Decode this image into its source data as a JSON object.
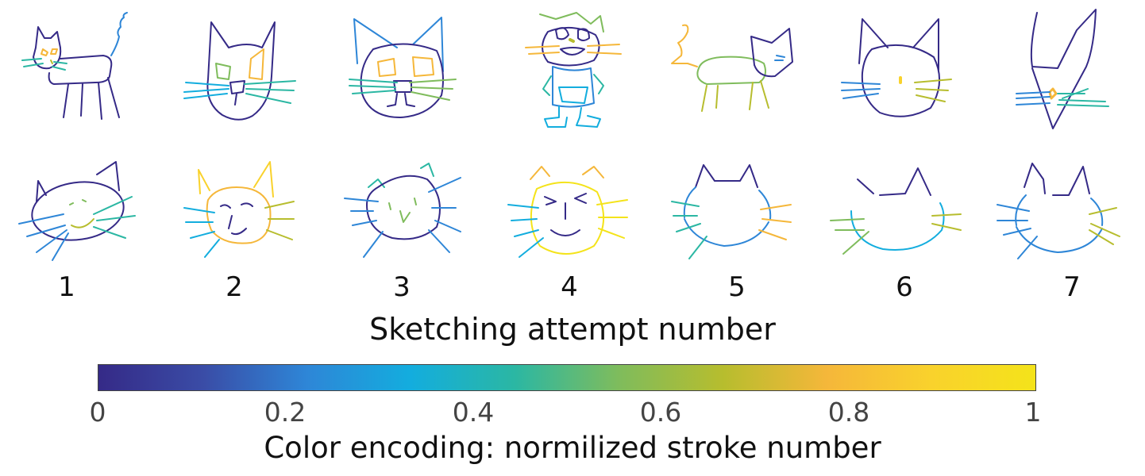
{
  "attempts": [
    "1",
    "2",
    "3",
    "4",
    "5",
    "6",
    "7"
  ],
  "xaxis_title": "Sketching attempt number",
  "colorbar": {
    "title": "Color encoding: normilized stroke number",
    "ticks": [
      "0",
      "0.2",
      "0.4",
      "0.6",
      "0.8",
      "1"
    ],
    "colors": [
      "#352a87",
      "#3a4ca6",
      "#2e86d7",
      "#13adde",
      "#2bb7a3",
      "#7fbc5c",
      "#b7bd2e",
      "#f5b73a",
      "#f9d22c",
      "#f4e31a"
    ]
  }
}
